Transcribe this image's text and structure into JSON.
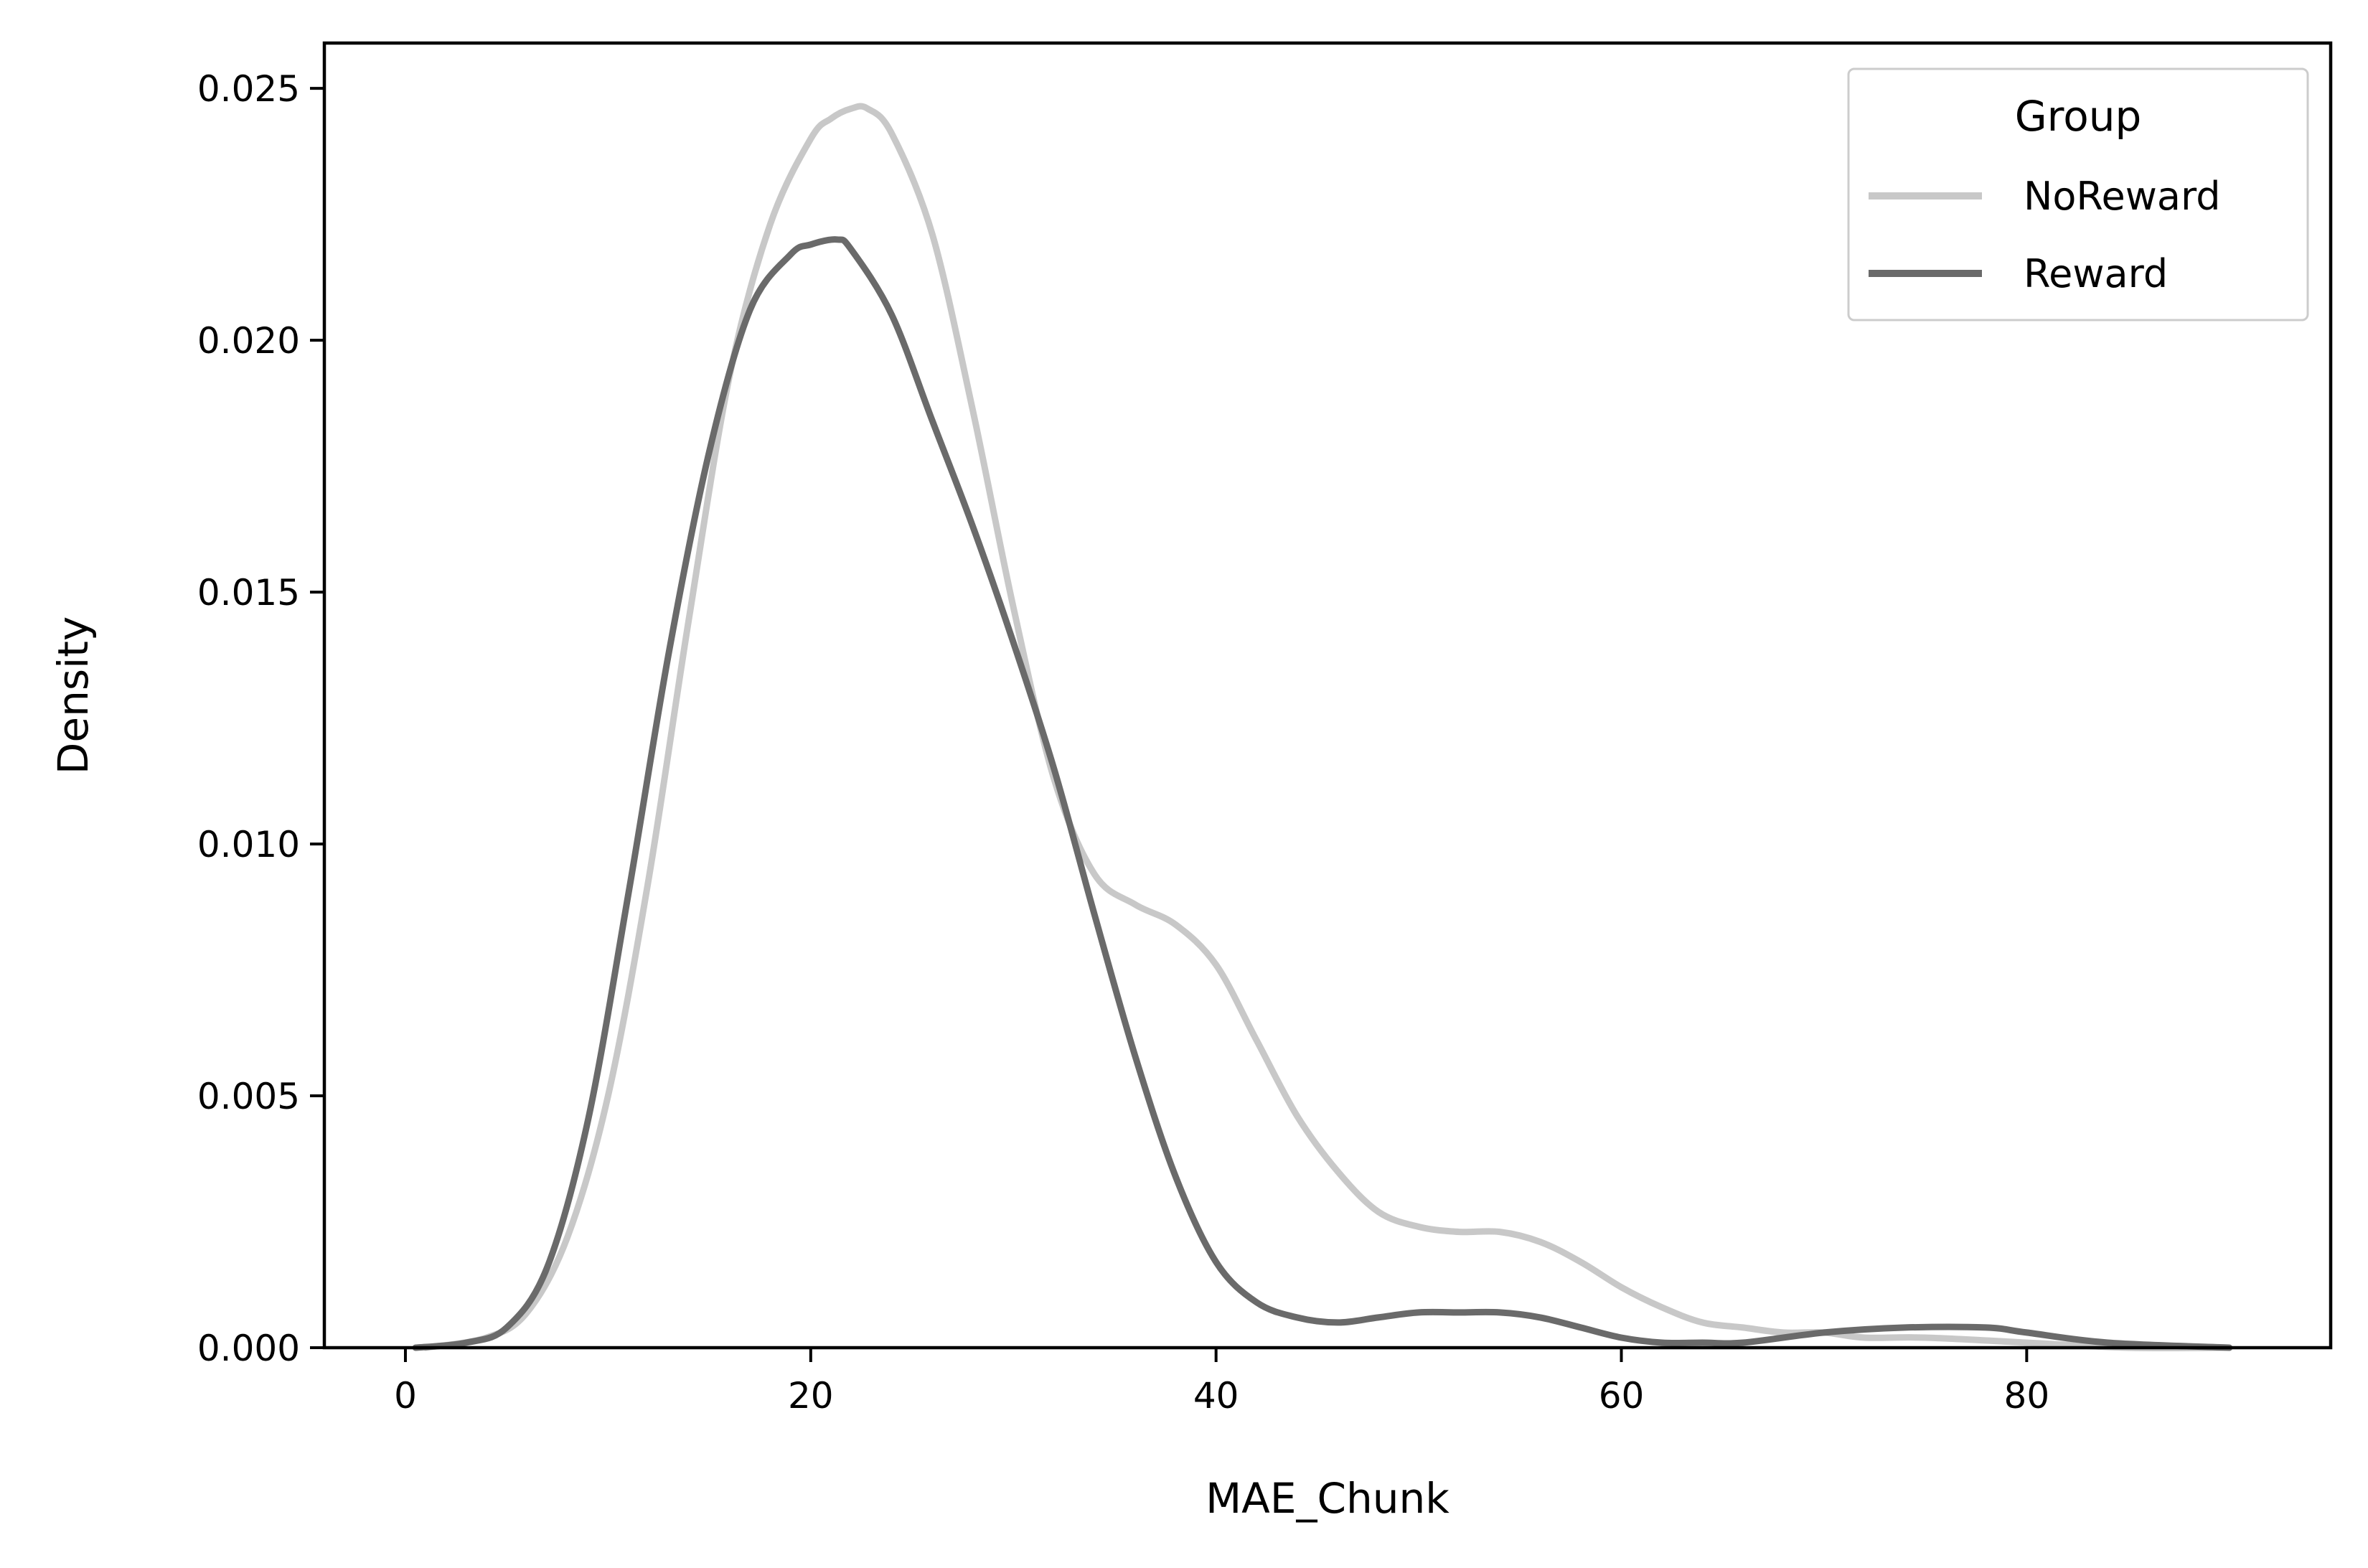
{
  "chart_data": {
    "type": "line",
    "subtype": "kde",
    "title": "",
    "xlabel": "MAE_Chunk",
    "ylabel": "Density",
    "xlim": [
      -4,
      95
    ],
    "ylim": [
      0,
      0.0259
    ],
    "xticks": [
      0,
      20,
      40,
      60,
      80
    ],
    "xtick_labels": [
      "0",
      "20",
      "40",
      "60",
      "80"
    ],
    "yticks": [
      0,
      0.005,
      0.01,
      0.015,
      0.02,
      0.025
    ],
    "ytick_labels": [
      "0.000",
      "0.005",
      "0.010",
      "0.015",
      "0.020",
      "0.025"
    ],
    "grid": false,
    "legend": {
      "title": "Group",
      "placement": "top-right"
    },
    "series": [
      {
        "name": "NoReward",
        "color": "#c8c8c8",
        "x": [
          1,
          4,
          6,
          8,
          10,
          12,
          14,
          16,
          18,
          20,
          21,
          22,
          22.8,
          24,
          26,
          28,
          30,
          32,
          34,
          36,
          38,
          40,
          42,
          44,
          46,
          48,
          50,
          52,
          54,
          56,
          58,
          60,
          62,
          64,
          66,
          68,
          70,
          72,
          75,
          80,
          85,
          90
        ],
        "y": [
          0.0,
          0.0002,
          0.0007,
          0.0022,
          0.005,
          0.0093,
          0.0145,
          0.0193,
          0.0223,
          0.024,
          0.0244,
          0.0246,
          0.0246,
          0.0241,
          0.0221,
          0.0186,
          0.0147,
          0.0113,
          0.0094,
          0.0088,
          0.0084,
          0.0076,
          0.0061,
          0.0046,
          0.0035,
          0.0027,
          0.0024,
          0.0023,
          0.0023,
          0.0021,
          0.0017,
          0.0012,
          0.0008,
          0.0005,
          0.0004,
          0.0003,
          0.0003,
          0.0002,
          0.0002,
          0.0001,
          0.0,
          0.0
        ]
      },
      {
        "name": "Reward",
        "color": "#6a6a6a",
        "x": [
          0.5,
          3,
          5,
          7,
          9,
          11,
          13,
          15,
          17,
          19,
          20,
          21.3,
          22,
          24,
          26,
          28,
          30,
          32,
          34,
          36,
          38,
          40,
          42,
          44,
          46,
          48,
          50,
          52,
          54,
          56,
          58,
          60,
          62,
          64,
          66,
          70,
          74,
          78,
          80,
          84,
          90
        ],
        "y": [
          0.0,
          0.0001,
          0.0004,
          0.0016,
          0.0045,
          0.009,
          0.0138,
          0.0178,
          0.0206,
          0.0217,
          0.0219,
          0.022,
          0.0218,
          0.0205,
          0.0184,
          0.0163,
          0.014,
          0.0115,
          0.0086,
          0.0058,
          0.0034,
          0.0017,
          0.0009,
          0.0006,
          0.0005,
          0.0006,
          0.0007,
          0.0007,
          0.0007,
          0.0006,
          0.0004,
          0.0002,
          0.0001,
          0.0001,
          0.0001,
          0.0003,
          0.0004,
          0.0004,
          0.0003,
          0.0001,
          0.0
        ]
      }
    ]
  }
}
